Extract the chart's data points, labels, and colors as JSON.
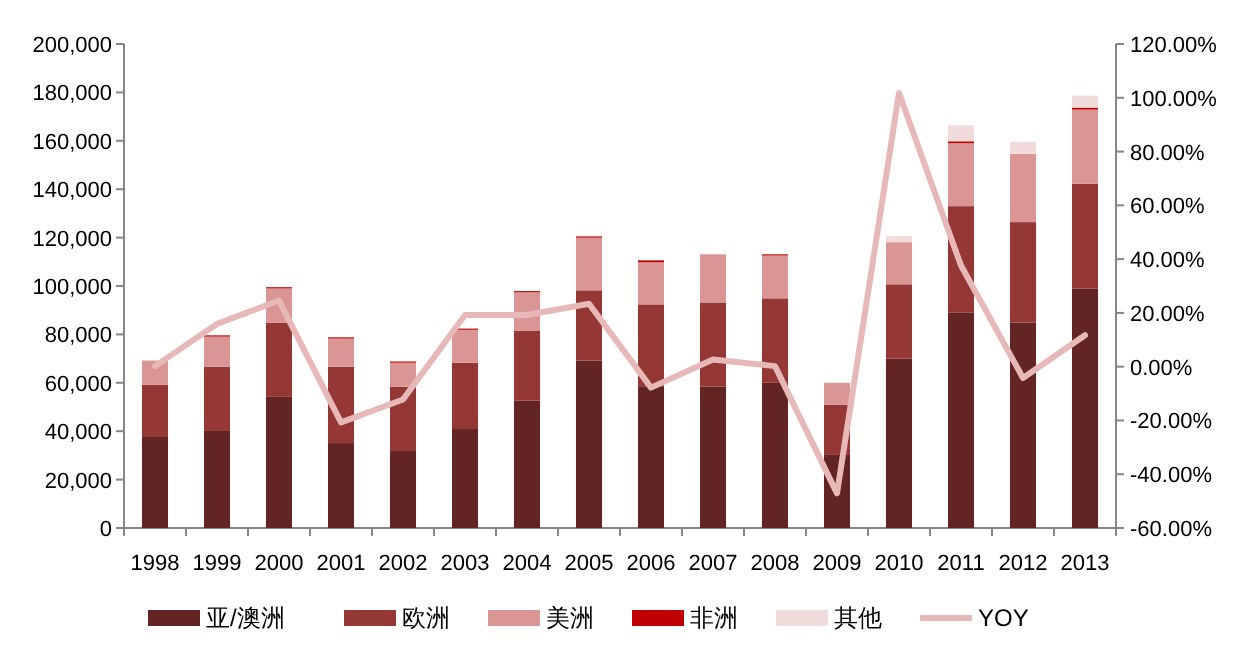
{
  "chart_data": {
    "type": "bar",
    "stacked": true,
    "legend": "bottom",
    "grid": false,
    "categories": [
      "1998",
      "1999",
      "2000",
      "2001",
      "2002",
      "2003",
      "2004",
      "2005",
      "2006",
      "2007",
      "2008",
      "2009",
      "2010",
      "2011",
      "2012",
      "2013"
    ],
    "series": [
      {
        "name": "亚/澳洲",
        "color": "#632523",
        "values": [
          37600,
          40100,
          54200,
          35100,
          31800,
          40900,
          52600,
          69200,
          58600,
          58400,
          60000,
          30200,
          70000,
          89100,
          84900,
          99000
        ]
      },
      {
        "name": "欧洲",
        "color": "#953735",
        "values": [
          21600,
          26600,
          30700,
          31600,
          26600,
          27400,
          29000,
          29000,
          33800,
          34800,
          34900,
          20700,
          30700,
          43900,
          41500,
          43200
        ]
      },
      {
        "name": "美洲",
        "color": "#d99694",
        "values": [
          10000,
          12400,
          14100,
          11600,
          9900,
          13600,
          15800,
          21800,
          17400,
          19900,
          17700,
          9100,
          17400,
          26000,
          28200,
          30700
        ]
      },
      {
        "name": "非洲",
        "color": "#c00000",
        "values": [
          null,
          500,
          500,
          500,
          500,
          500,
          500,
          500,
          800,
          null,
          500,
          null,
          null,
          800,
          null,
          800
        ]
      },
      {
        "name": "其他",
        "color": "#f2dcdb",
        "values": [
          null,
          null,
          null,
          null,
          null,
          null,
          null,
          null,
          null,
          null,
          null,
          null,
          2500,
          6600,
          5000,
          5000
        ]
      },
      {
        "name": "YOY",
        "type": "line",
        "axis": "y2",
        "color": "#e6b9b8",
        "values": [
          0.2,
          15.9,
          24.6,
          -20.7,
          -12.2,
          19.2,
          19.2,
          23.4,
          -7.8,
          2.7,
          0.2,
          -47.1,
          101.8,
          37.6,
          -4.2,
          11.7
        ]
      }
    ],
    "ylim": [
      0,
      200000
    ],
    "yticks": [
      {
        "value": 0,
        "label": "0"
      },
      {
        "value": 20000,
        "label": "20,000"
      },
      {
        "value": 40000,
        "label": "40,000"
      },
      {
        "value": 60000,
        "label": "60,000"
      },
      {
        "value": 80000,
        "label": "80,000"
      },
      {
        "value": 100000,
        "label": "100,000"
      },
      {
        "value": 120000,
        "label": "120,000"
      },
      {
        "value": 140000,
        "label": "140,000"
      },
      {
        "value": 160000,
        "label": "160,000"
      },
      {
        "value": 180000,
        "label": "180,000"
      },
      {
        "value": 200000,
        "label": "200,000"
      }
    ],
    "y2lim": [
      -60,
      120
    ],
    "y2ticks": [
      {
        "value": -60,
        "label": "-60.00%"
      },
      {
        "value": -40,
        "label": "-40.00%"
      },
      {
        "value": -20,
        "label": "-20.00%"
      },
      {
        "value": 0,
        "label": "0.00%"
      },
      {
        "value": 20,
        "label": "20.00%"
      },
      {
        "value": 40,
        "label": "40.00%"
      },
      {
        "value": 60,
        "label": "60.00%"
      },
      {
        "value": 80,
        "label": "80.00%"
      },
      {
        "value": 100,
        "label": "100.00%"
      },
      {
        "value": 120,
        "label": "120.00%"
      }
    ]
  }
}
